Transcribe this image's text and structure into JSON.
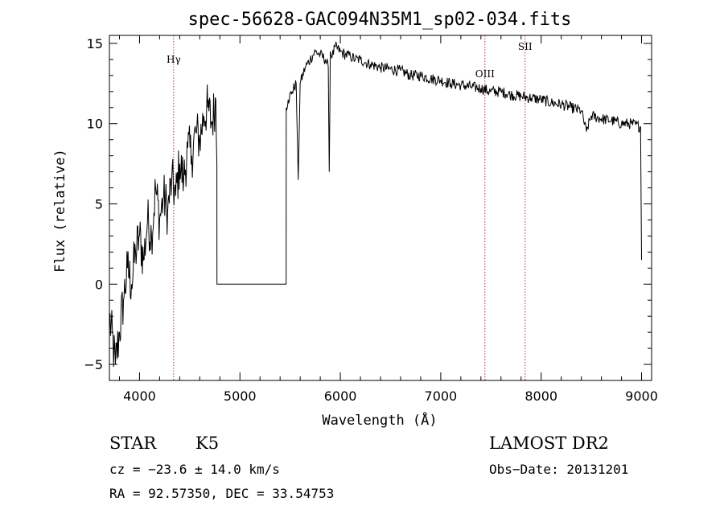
{
  "chart_data": {
    "type": "line",
    "title": "spec-56628-GAC094N35M1_sp02-034.fits",
    "xlabel": "Wavelength (Å)",
    "ylabel": "Flux (relative)",
    "xlim": [
      3700,
      9100
    ],
    "ylim": [
      -6,
      15.5
    ],
    "x_ticks": [
      4000,
      5000,
      6000,
      7000,
      8000,
      9000
    ],
    "y_ticks": [
      -5,
      0,
      5,
      10,
      15
    ],
    "grid": false,
    "series": [
      {
        "x": [
          3700,
          3760,
          3800,
          3840,
          3880,
          3920,
          3960,
          4000,
          4040,
          4080,
          4120,
          4160,
          4200,
          4240,
          4280,
          4320,
          4360,
          4400,
          4440,
          4480,
          4520,
          4560,
          4600,
          4640,
          4680,
          4720,
          4760,
          4770,
          4771,
          5460,
          5461,
          5480,
          5520,
          5560,
          5580,
          5600,
          5650,
          5700,
          5750,
          5800,
          5850,
          5880,
          5890,
          5900,
          5920,
          5950,
          6000,
          6050,
          6100,
          6150,
          6200,
          6250,
          6300,
          6400,
          6500,
          6600,
          6700,
          6800,
          6900,
          7000,
          7100,
          7200,
          7300,
          7400,
          7500,
          7600,
          7700,
          7800,
          7900,
          8000,
          8100,
          8200,
          8300,
          8400,
          8450,
          8500,
          8600,
          8700,
          8800,
          8900,
          8990,
          9000
        ],
        "y": [
          -2.0,
          -5.0,
          -3.0,
          -1.0,
          1.0,
          0.0,
          2.0,
          3.0,
          1.5,
          4.0,
          3.0,
          6.0,
          4.0,
          5.5,
          4.5,
          6.5,
          5.5,
          7.5,
          6.5,
          8.5,
          8.0,
          9.5,
          9.0,
          10.5,
          11.0,
          10.0,
          11.5,
          7.5,
          0.0,
          0.0,
          11.0,
          11.5,
          12.0,
          12.5,
          6.5,
          12.5,
          13.5,
          14.0,
          14.5,
          14.3,
          14.0,
          13.5,
          7.0,
          14.5,
          14.2,
          14.8,
          14.5,
          14.3,
          14.2,
          14.0,
          14.0,
          13.8,
          13.7,
          13.5,
          13.4,
          13.3,
          13.0,
          13.0,
          12.8,
          12.7,
          12.5,
          12.4,
          12.3,
          12.2,
          12.0,
          12.0,
          11.8,
          11.7,
          11.6,
          11.5,
          11.3,
          11.2,
          11.0,
          10.8,
          9.5,
          10.5,
          10.3,
          10.2,
          10.0,
          10.0,
          9.8,
          1.5
        ]
      }
    ],
    "annotations": [
      {
        "label": "Hγ",
        "x": 4340
      },
      {
        "label": "OIII",
        "x": 7440
      },
      {
        "label": "SII",
        "x": 7840
      }
    ]
  },
  "info": {
    "class_label": "STAR",
    "subclass_label": "K5",
    "survey_label": "LAMOST DR2",
    "cz_text": "cz = −23.6 ± 14.0 km/s",
    "obs_date_text": "Obs−Date: 20131201",
    "coords_text": "RA =  92.57350, DEC =  33.54753"
  }
}
